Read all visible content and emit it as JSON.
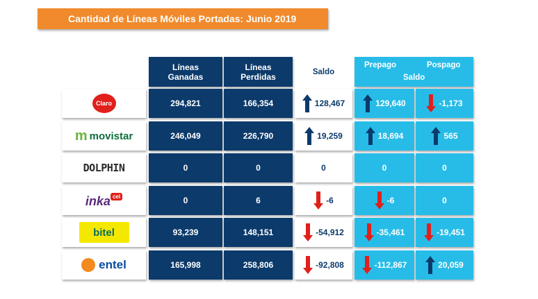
{
  "title": "Cantidad de Líneas Móviles Portadas: Junio 2019",
  "headers": {
    "ganadas": [
      "Líneas",
      "Ganadas"
    ],
    "perdidas": [
      "Líneas",
      "Perdidas"
    ],
    "saldo": "Saldo",
    "prepago": "Prepago",
    "pospago": "Pospago",
    "saldo2": "Saldo"
  },
  "colors": {
    "dark": "#0c3a6b",
    "light": "#27bce8",
    "orange": "#f08a2c",
    "down": "#e0201b"
  },
  "rows": [
    {
      "logo": "claro-logo",
      "logo_text": "Claro",
      "ganadas": "294,821",
      "perdidas": "166,354",
      "saldo": "128,467",
      "saldo_dir": "up",
      "prepago": "129,640",
      "prepago_dir": "up",
      "pospago": "-1,173",
      "pospago_dir": "down"
    },
    {
      "logo": "movistar-logo",
      "logo_text": "movistar",
      "ganadas": "246,049",
      "perdidas": "226,790",
      "saldo": "19,259",
      "saldo_dir": "up",
      "prepago": "18,694",
      "prepago_dir": "up",
      "pospago": "565",
      "pospago_dir": "up"
    },
    {
      "logo": "dolphin-logo",
      "logo_text": "DOLPHIN",
      "ganadas": "0",
      "perdidas": "0",
      "saldo": "0",
      "saldo_dir": "none",
      "prepago": "0",
      "prepago_dir": "none",
      "pospago": "0",
      "pospago_dir": "none"
    },
    {
      "logo": "inkacel-logo",
      "logo_text": "inka",
      "ganadas": "0",
      "perdidas": "6",
      "saldo": "-6",
      "saldo_dir": "down",
      "prepago": "-6",
      "prepago_dir": "down",
      "pospago": "0",
      "pospago_dir": "none"
    },
    {
      "logo": "bitel-logo",
      "logo_text": "bitel",
      "ganadas": "93,239",
      "perdidas": "148,151",
      "saldo": "-54,912",
      "saldo_dir": "down",
      "prepago": "-35,461",
      "prepago_dir": "down",
      "pospago": "-19,451",
      "pospago_dir": "down"
    },
    {
      "logo": "entel-logo",
      "logo_text": "entel",
      "ganadas": "165,998",
      "perdidas": "258,806",
      "saldo": "-92,808",
      "saldo_dir": "down",
      "prepago": "-112,867",
      "prepago_dir": "down",
      "pospago": "20,059",
      "pospago_dir": "up"
    }
  ]
}
